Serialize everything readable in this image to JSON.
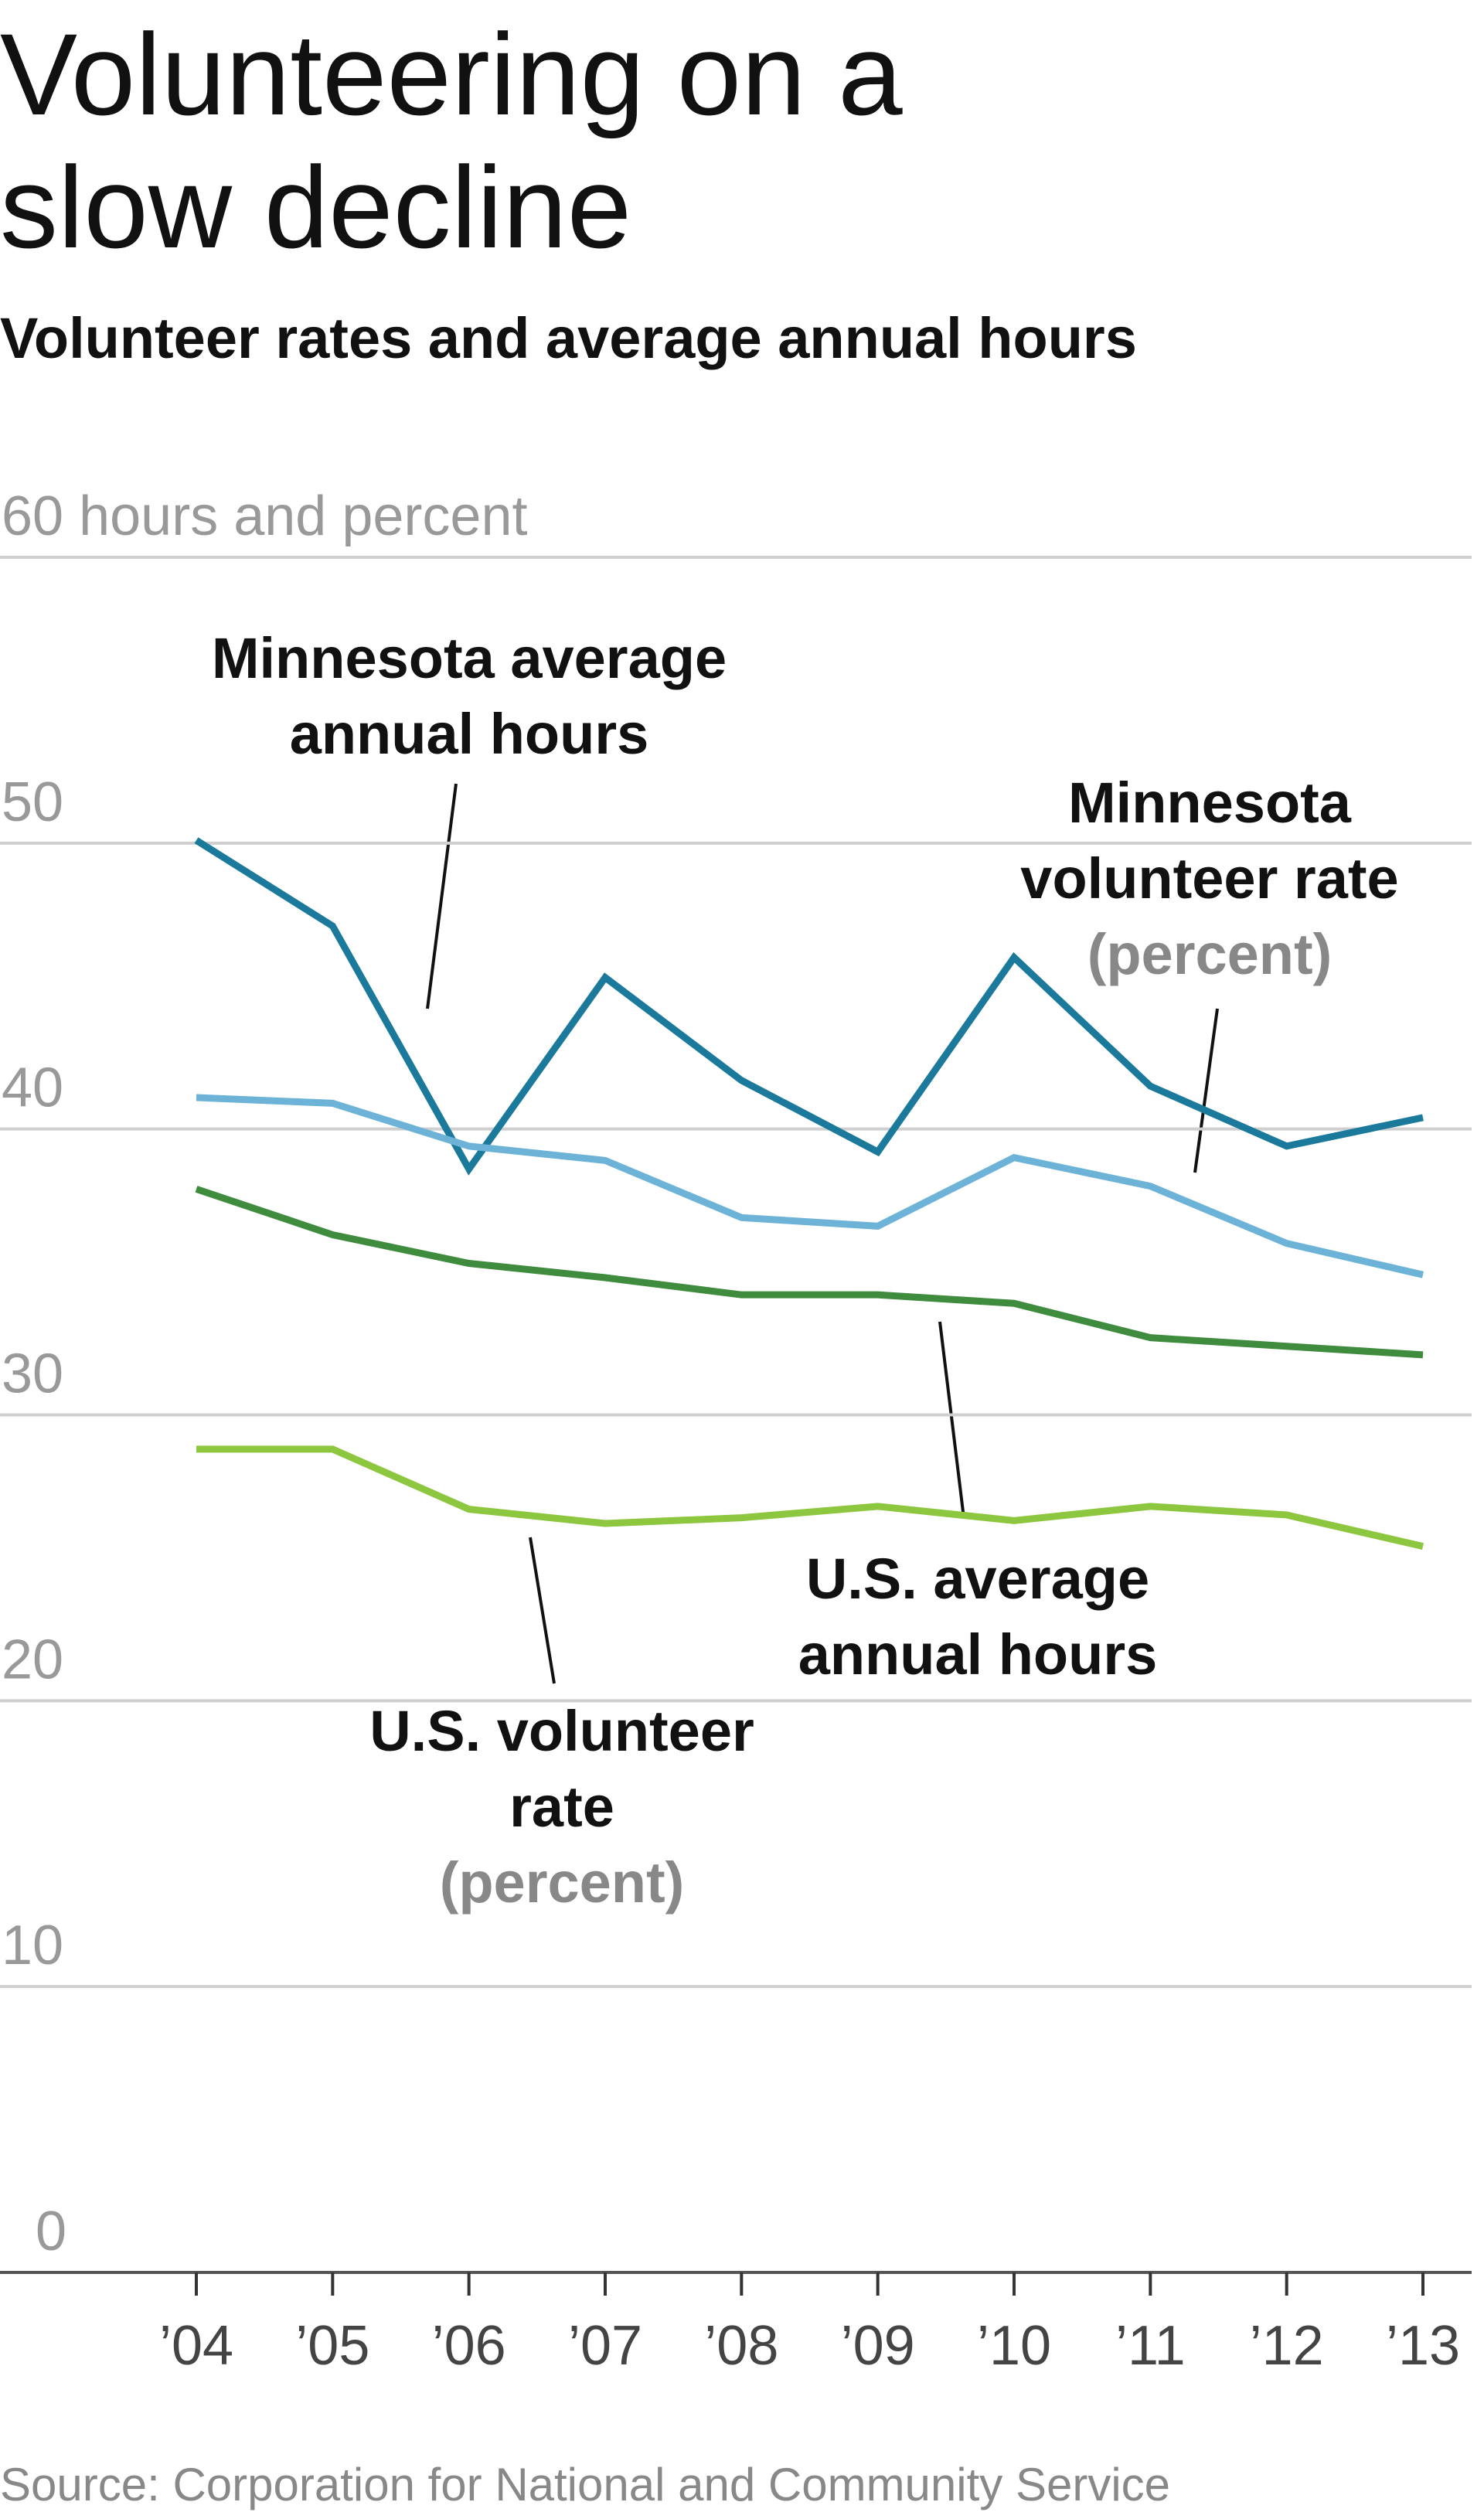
{
  "chart_data": {
    "type": "line",
    "title": "Volunteering on a slow decline",
    "subtitle": "Volunteer rates and average annual hours",
    "source": "Source: Corporation for National and Community Service",
    "categories": [
      "’04",
      "’05",
      "’06",
      "’07",
      "’08",
      "’09",
      "’10",
      "’11",
      "’12",
      "’13"
    ],
    "ylim": [
      0,
      60
    ],
    "yticks": [
      0,
      10,
      20,
      30,
      40,
      50,
      {
        "value": 60,
        "label": "60 hours and percent"
      }
    ],
    "grid": true,
    "series": [
      {
        "name": "Minnesota average annual hours",
        "color": "#1b7a9c",
        "values": [
          50.1,
          47.1,
          38.6,
          45.3,
          41.7,
          39.2,
          46.0,
          41.5,
          39.4,
          40.4
        ]
      },
      {
        "name": "Minnesota volunteer rate",
        "note": "(percent)",
        "color": "#6db3d8",
        "values": [
          41.1,
          40.9,
          39.4,
          38.9,
          36.9,
          36.6,
          39.0,
          38.0,
          36.0,
          34.9
        ]
      },
      {
        "name": "U.S. average annual hours",
        "color": "#3f8c3f",
        "values": [
          37.9,
          36.3,
          35.3,
          34.8,
          34.2,
          34.2,
          33.9,
          32.7,
          32.4,
          32.1
        ]
      },
      {
        "name": "U.S. volunteer rate",
        "note": "(percent)",
        "color": "#8dc63f",
        "values": [
          28.8,
          28.8,
          26.7,
          26.2,
          26.4,
          26.8,
          26.3,
          26.8,
          26.5,
          25.4
        ]
      }
    ]
  }
}
